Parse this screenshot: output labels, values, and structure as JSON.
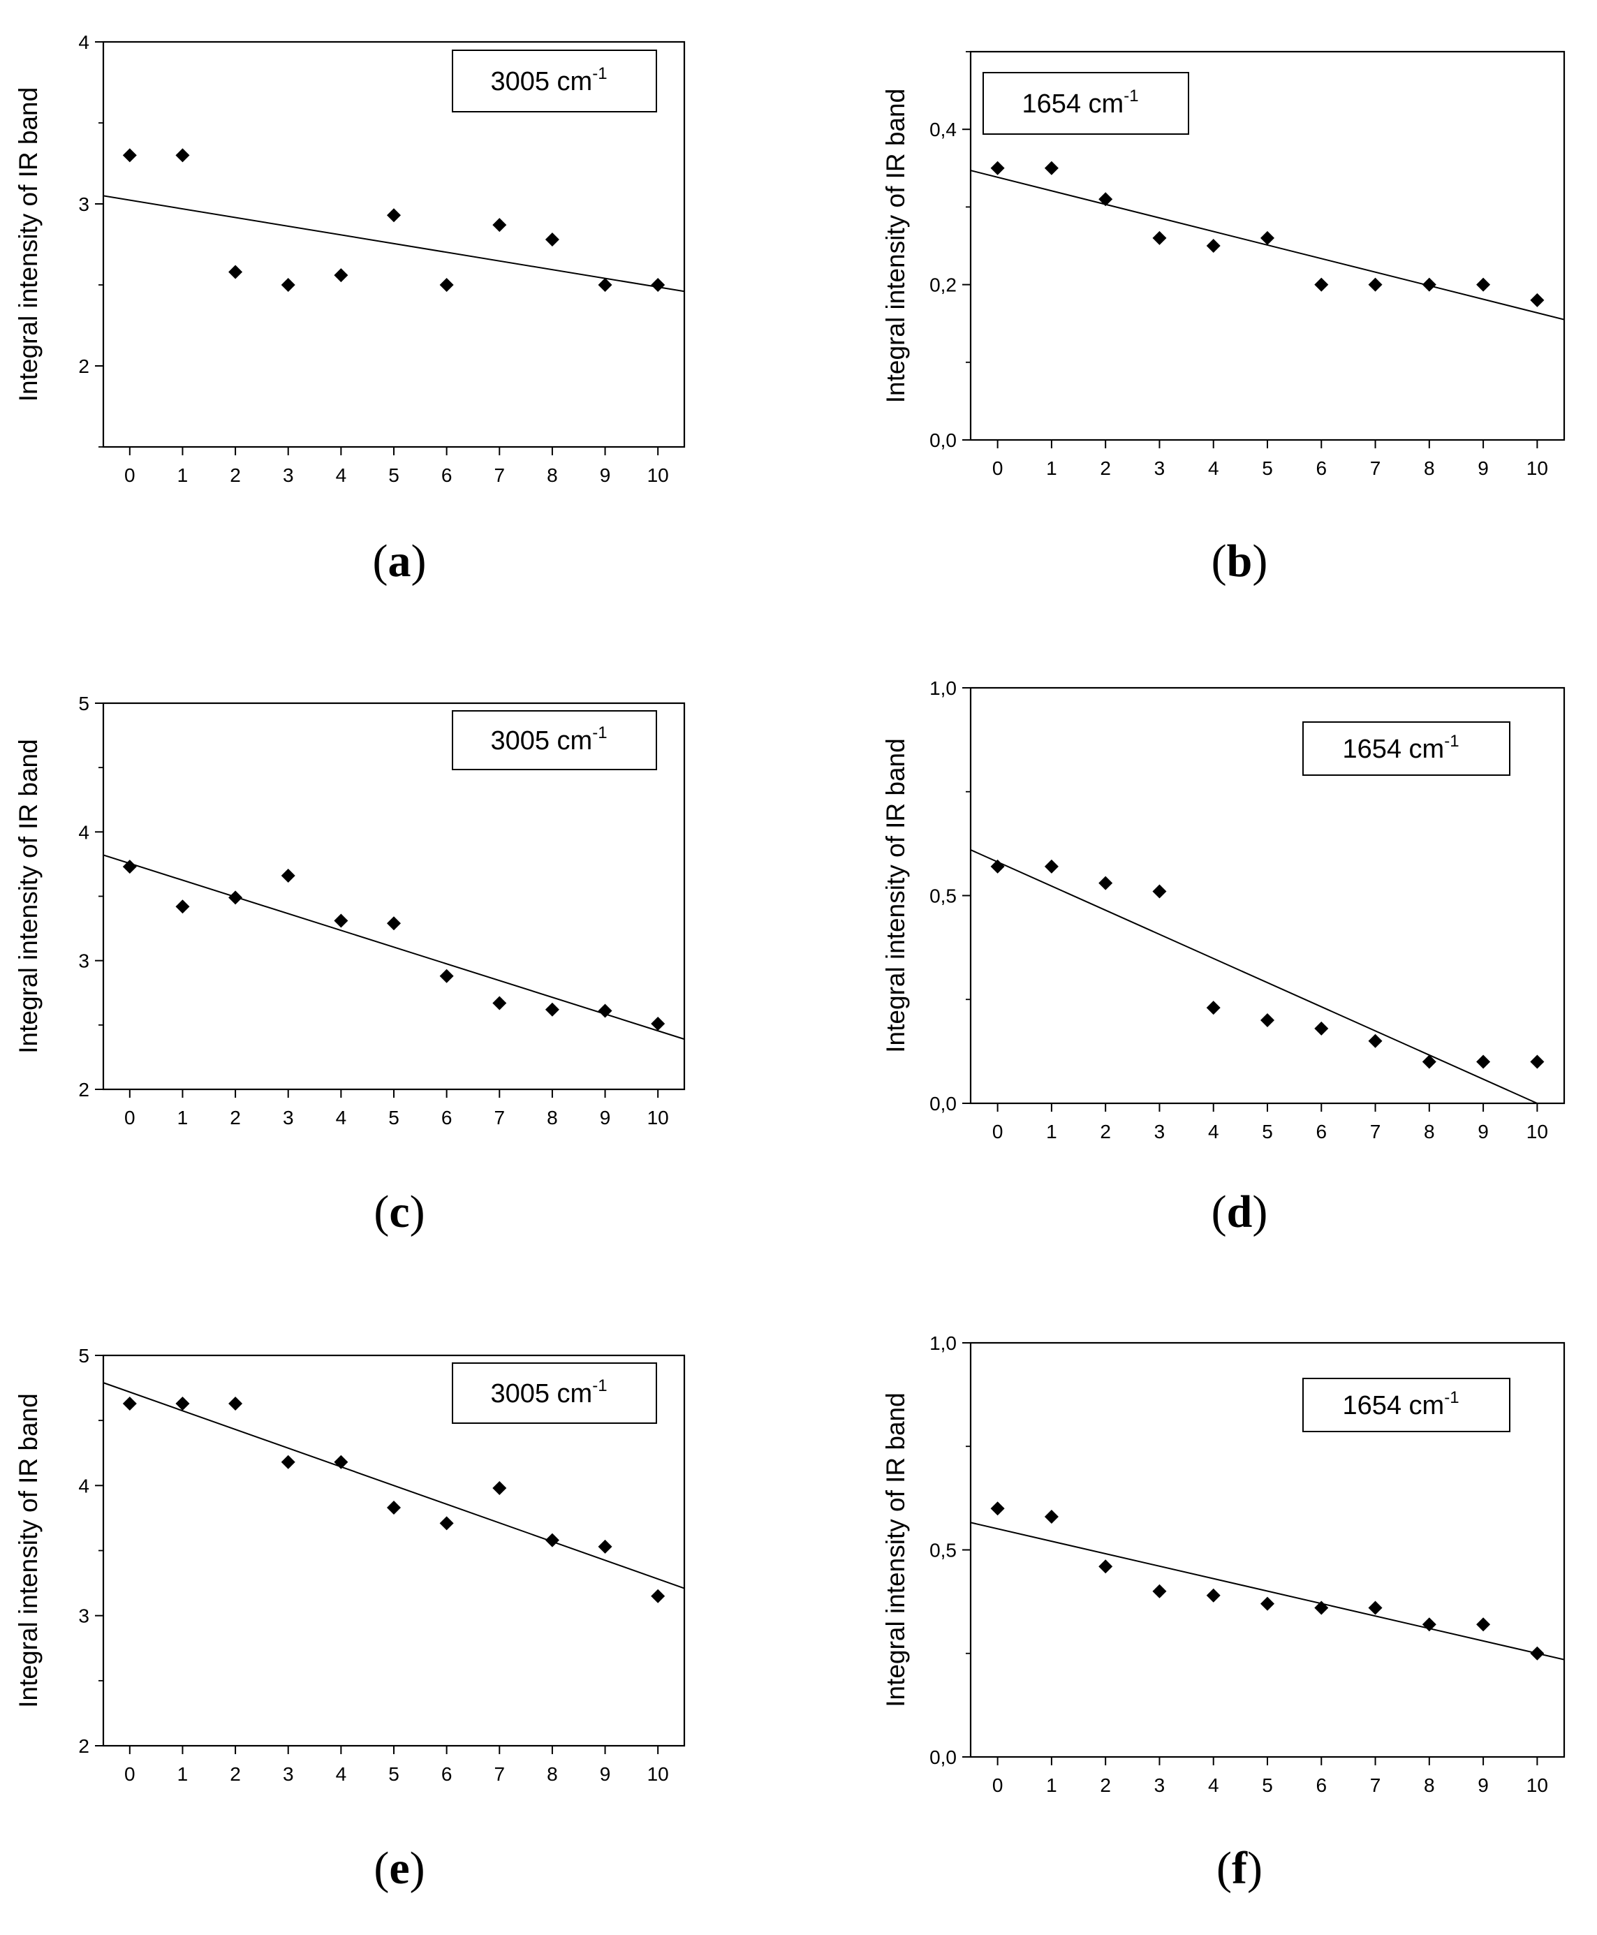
{
  "chart_data": [
    {
      "type": "scatter",
      "panel_label": "(a)",
      "legend_text": "3005 cm",
      "legend_sup": "-1",
      "legend_position": "top-right",
      "ylabel": "Integral intensity of IR band",
      "xlabel": "",
      "xlim": [
        -0.5,
        10.5
      ],
      "ylim": [
        1.5,
        4
      ],
      "x_ticks": [
        "0",
        "1",
        "2",
        "3",
        "4",
        "5",
        "6",
        "7",
        "8",
        "9",
        "10"
      ],
      "y_ticks": [
        {
          "value": 2,
          "label": "2"
        },
        {
          "value": 3,
          "label": "3"
        },
        {
          "value": 4,
          "label": "4"
        }
      ],
      "x": [
        0,
        1,
        2,
        3,
        4,
        5,
        6,
        7,
        8,
        9,
        10
      ],
      "y": [
        3.3,
        3.3,
        2.58,
        2.5,
        2.56,
        2.93,
        2.5,
        2.87,
        2.78,
        2.5,
        2.5
      ],
      "fit": {
        "x": [
          -0.5,
          10.5
        ],
        "y": [
          3.05,
          2.46
        ]
      }
    },
    {
      "type": "scatter",
      "panel_label": "(b)",
      "legend_text": "1654 cm",
      "legend_sup": "-1",
      "legend_position": "top-left",
      "ylabel": "Integral intensity of IR band",
      "xlabel": "",
      "xlim": [
        -0.5,
        10.5
      ],
      "ylim": [
        0,
        0.5
      ],
      "x_ticks": [
        "0",
        "1",
        "2",
        "3",
        "4",
        "5",
        "6",
        "7",
        "8",
        "9",
        "10"
      ],
      "y_ticks": [
        {
          "value": 0,
          "label": "0,0"
        },
        {
          "value": 0.2,
          "label": "0,2"
        },
        {
          "value": 0.4,
          "label": "0,4"
        }
      ],
      "x": [
        0,
        1,
        2,
        3,
        4,
        5,
        6,
        7,
        8,
        9,
        10
      ],
      "y": [
        0.35,
        0.35,
        0.31,
        0.26,
        0.25,
        0.26,
        0.2,
        0.2,
        0.2,
        0.2,
        0.18
      ],
      "fit": {
        "x": [
          -0.5,
          10.5
        ],
        "y": [
          0.347,
          0.155
        ]
      }
    },
    {
      "type": "scatter",
      "panel_label": "(c)",
      "legend_text": "3005 cm",
      "legend_sup": "-1",
      "legend_position": "top-right",
      "ylabel": "Integral intensity of IR band",
      "xlabel": "",
      "xlim": [
        -0.5,
        10.5
      ],
      "ylim": [
        2,
        5
      ],
      "x_ticks": [
        "0",
        "1",
        "2",
        "3",
        "4",
        "5",
        "6",
        "7",
        "8",
        "9",
        "10"
      ],
      "y_ticks": [
        {
          "value": 2,
          "label": "2"
        },
        {
          "value": 3,
          "label": "3"
        },
        {
          "value": 4,
          "label": "4"
        },
        {
          "value": 5,
          "label": "5"
        }
      ],
      "x": [
        0,
        1,
        2,
        3,
        4,
        5,
        6,
        7,
        8,
        9,
        10
      ],
      "y": [
        3.73,
        3.42,
        3.49,
        3.66,
        3.31,
        3.29,
        2.88,
        2.67,
        2.62,
        2.61,
        2.51
      ],
      "fit": {
        "x": [
          -0.5,
          10.5
        ],
        "y": [
          3.82,
          2.39
        ]
      }
    },
    {
      "type": "scatter",
      "panel_label": "(d)",
      "legend_text": "1654 cm",
      "legend_sup": "-1",
      "legend_position": "top-right",
      "ylabel": "Integral intensity of IR band",
      "xlabel": "",
      "xlim": [
        -0.5,
        10.5
      ],
      "ylim": [
        0,
        1
      ],
      "x_ticks": [
        "0",
        "1",
        "2",
        "3",
        "4",
        "5",
        "6",
        "7",
        "8",
        "9",
        "10"
      ],
      "y_ticks": [
        {
          "value": 0,
          "label": "0,0"
        },
        {
          "value": 0.5,
          "label": "0,5"
        },
        {
          "value": 1,
          "label": "1,0"
        }
      ],
      "x": [
        0,
        1,
        2,
        3,
        4,
        5,
        6,
        7,
        8,
        9,
        10
      ],
      "y": [
        0.57,
        0.57,
        0.53,
        0.51,
        0.23,
        0.2,
        0.18,
        0.15,
        0.1,
        0.1,
        0.1
      ],
      "fit": {
        "x": [
          -0.5,
          10
        ],
        "y": [
          0.61,
          0
        ]
      }
    },
    {
      "type": "scatter",
      "panel_label": "(e)",
      "legend_text": "3005 cm",
      "legend_sup": "-1",
      "legend_position": "top-right",
      "ylabel": "Integral intensity of IR band",
      "xlabel": "",
      "xlim": [
        -0.5,
        10.5
      ],
      "ylim": [
        2,
        5
      ],
      "x_ticks": [
        "0",
        "1",
        "2",
        "3",
        "4",
        "5",
        "6",
        "7",
        "8",
        "9",
        "10"
      ],
      "y_ticks": [
        {
          "value": 2,
          "label": "2"
        },
        {
          "value": 3,
          "label": "3"
        },
        {
          "value": 4,
          "label": "4"
        },
        {
          "value": 5,
          "label": "5"
        }
      ],
      "x": [
        0,
        1,
        2,
        3,
        4,
        5,
        6,
        7,
        8,
        9,
        10
      ],
      "y": [
        4.63,
        4.63,
        4.63,
        4.18,
        4.18,
        3.83,
        3.71,
        3.98,
        3.58,
        3.53,
        3.15
      ],
      "fit": {
        "x": [
          -0.5,
          10.5
        ],
        "y": [
          4.79,
          3.21
        ]
      }
    },
    {
      "type": "scatter",
      "panel_label": "(f)",
      "legend_text": "1654 cm",
      "legend_sup": "-1",
      "legend_position": "top-right",
      "ylabel": "Integral intensity of IR band",
      "xlabel": "",
      "xlim": [
        -0.5,
        10.5
      ],
      "ylim": [
        0,
        1
      ],
      "x_ticks": [
        "0",
        "1",
        "2",
        "3",
        "4",
        "5",
        "6",
        "7",
        "8",
        "9",
        "10"
      ],
      "y_ticks": [
        {
          "value": 0,
          "label": "0,0"
        },
        {
          "value": 0.5,
          "label": "0,5"
        },
        {
          "value": 1,
          "label": "1,0"
        }
      ],
      "x": [
        0,
        1,
        2,
        3,
        4,
        5,
        6,
        7,
        8,
        9,
        10
      ],
      "y": [
        0.6,
        0.58,
        0.46,
        0.4,
        0.39,
        0.37,
        0.36,
        0.36,
        0.32,
        0.32,
        0.25
      ],
      "fit": {
        "x": [
          -0.5,
          10.5
        ],
        "y": [
          0.566,
          0.235
        ]
      }
    }
  ]
}
